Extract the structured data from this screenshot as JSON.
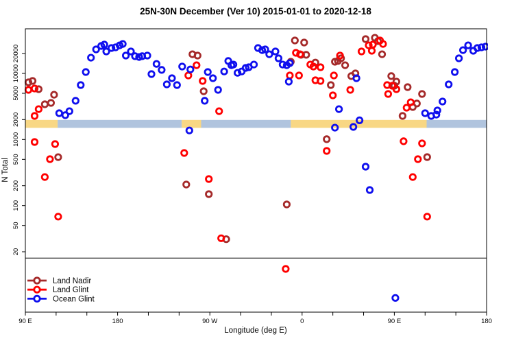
{
  "title": "25N-30N December (Ver 10)   2015-01-01 to 2020-12-18",
  "chart_data": {
    "type": "scatter",
    "title": "25N-30N December (Ver 10)   2015-01-01 to 2020-12-18",
    "xlabel": "Longitude (deg E)",
    "ylabel": "N Total",
    "x_axis": {
      "range_deg_e": [
        90,
        540
      ],
      "major_tick_lons": [
        90,
        180,
        270,
        360,
        450,
        540
      ],
      "major_tick_labels": [
        "90 E",
        "180",
        "90 W",
        "0",
        "90 E",
        "180"
      ],
      "minor_tick_step_deg": 30
    },
    "y_axis": {
      "scale": "log10",
      "tick_values": [
        20,
        50,
        100,
        200,
        500,
        1000,
        2000,
        5000,
        10000,
        20000
      ],
      "range": [
        2.4,
        47000
      ]
    },
    "reference_line": {
      "value": 16,
      "color": "#4D4D4D"
    },
    "surface_band": {
      "description": "land/ocean surface strip drawn across the plot near N=2000",
      "value_top": 1980,
      "value_bottom": 1500,
      "land_color": "#F8D784",
      "ocean_color": "#B0C4DE",
      "segments": [
        {
          "surface": "land",
          "from_deg": 90,
          "to_deg": 121.5
        },
        {
          "surface": "ocean",
          "from_deg": 121.5,
          "to_deg": 242.5
        },
        {
          "surface": "land",
          "from_deg": 242.5,
          "to_deg": 261.5
        },
        {
          "surface": "ocean",
          "from_deg": 261.5,
          "to_deg": 349
        },
        {
          "surface": "land",
          "from_deg": 349,
          "to_deg": 481.5
        },
        {
          "surface": "ocean",
          "from_deg": 481.5,
          "to_deg": 540
        }
      ]
    },
    "legend": {
      "position": "bottom-left",
      "entries": [
        {
          "label": "Land Nadir",
          "color": "#A52A2A"
        },
        {
          "label": "Land Glint",
          "color": "#FF0000"
        },
        {
          "label": "Ocean Glint",
          "color": "#0F0FEE"
        }
      ]
    },
    "series": [
      {
        "name": "Land Nadir",
        "color": "#A52A2A",
        "points": [
          [
            93,
            7330
          ],
          [
            97,
            7690
          ],
          [
            103,
            5770
          ],
          [
            109,
            3410
          ],
          [
            115,
            3580
          ],
          [
            118,
            4760
          ],
          [
            122,
            540
          ],
          [
            253,
            19500
          ],
          [
            258,
            18600
          ],
          [
            264,
            5370
          ],
          [
            247,
            208
          ],
          [
            269,
            149
          ],
          [
            286,
            31
          ],
          [
            345,
            104
          ],
          [
            349,
            15000
          ],
          [
            353,
            31500
          ],
          [
            359,
            19100
          ],
          [
            362,
            29300
          ],
          [
            364,
            19100
          ],
          [
            373,
            14600
          ],
          [
            384,
            1010
          ],
          [
            388,
            6660
          ],
          [
            392,
            15000
          ],
          [
            395,
            15400
          ],
          [
            398,
            16900
          ],
          [
            402,
            13300
          ],
          [
            408,
            9100
          ],
          [
            412,
            10000
          ],
          [
            422,
            33000
          ],
          [
            431,
            34600
          ],
          [
            434,
            30800
          ],
          [
            438,
            19500
          ],
          [
            447,
            9100
          ],
          [
            450,
            6500
          ],
          [
            452,
            7500
          ],
          [
            458,
            2270
          ],
          [
            463,
            6200
          ],
          [
            468,
            3100
          ],
          [
            472,
            3500
          ],
          [
            477,
            4880
          ],
          [
            482,
            541
          ]
        ]
      },
      {
        "name": "Land Glint",
        "color": "#FF0000",
        "points": [
          [
            93,
            5630
          ],
          [
            99,
            5910
          ],
          [
            103,
            2880
          ],
          [
            99,
            2270
          ],
          [
            99,
            915
          ],
          [
            114,
            504
          ],
          [
            109,
            270
          ],
          [
            119,
            853
          ],
          [
            122,
            68
          ],
          [
            245,
            625
          ],
          [
            249,
            9310
          ],
          [
            257,
            13300
          ],
          [
            263,
            7690
          ],
          [
            269,
            252
          ],
          [
            279,
            2680
          ],
          [
            281,
            32
          ],
          [
            344,
            11
          ],
          [
            348,
            9310
          ],
          [
            354,
            20500
          ],
          [
            357,
            9310
          ],
          [
            358,
            19500
          ],
          [
            368,
            13600
          ],
          [
            371,
            12700
          ],
          [
            373,
            7870
          ],
          [
            378,
            12400
          ],
          [
            378,
            7690
          ],
          [
            384,
            671
          ],
          [
            390,
            4650
          ],
          [
            391,
            9310
          ],
          [
            397,
            18600
          ],
          [
            407,
            5630
          ],
          [
            418,
            21500
          ],
          [
            425,
            26600
          ],
          [
            428,
            22000
          ],
          [
            429,
            27300
          ],
          [
            436,
            31500
          ],
          [
            439,
            27900
          ],
          [
            443,
            6660
          ],
          [
            444,
            4880
          ],
          [
            448,
            6500
          ],
          [
            452,
            5770
          ],
          [
            459,
            940
          ],
          [
            462,
            3030
          ],
          [
            466,
            3660
          ],
          [
            468,
            270
          ],
          [
            473,
            504
          ],
          [
            477,
            873
          ],
          [
            482,
            68
          ]
        ]
      },
      {
        "name": "Ocean Glint",
        "color": "#0F0FEE",
        "points": [
          [
            123,
            2500
          ],
          [
            129,
            2330
          ],
          [
            133,
            2680
          ],
          [
            139,
            3850
          ],
          [
            144,
            6660
          ],
          [
            149,
            10500
          ],
          [
            154,
            17300
          ],
          [
            159,
            23100
          ],
          [
            164,
            26000
          ],
          [
            167,
            27300
          ],
          [
            169,
            21500
          ],
          [
            174,
            24200
          ],
          [
            178,
            24800
          ],
          [
            182,
            26600
          ],
          [
            185,
            27900
          ],
          [
            188,
            18600
          ],
          [
            193,
            21500
          ],
          [
            197,
            18200
          ],
          [
            201,
            17700
          ],
          [
            204,
            18200
          ],
          [
            209,
            18600
          ],
          [
            213,
            9770
          ],
          [
            218,
            13900
          ],
          [
            223,
            11300
          ],
          [
            228,
            6820
          ],
          [
            233,
            8460
          ],
          [
            238,
            6660
          ],
          [
            243,
            12700
          ],
          [
            250,
            1370
          ],
          [
            251,
            11500
          ],
          [
            265,
            3850
          ],
          [
            268,
            10500
          ],
          [
            273,
            8460
          ],
          [
            278,
            5630
          ],
          [
            284,
            10700
          ],
          [
            288,
            15400
          ],
          [
            291,
            13300
          ],
          [
            293,
            13600
          ],
          [
            297,
            10200
          ],
          [
            301,
            10700
          ],
          [
            305,
            12100
          ],
          [
            308,
            12400
          ],
          [
            313,
            13600
          ],
          [
            317,
            24200
          ],
          [
            321,
            22500
          ],
          [
            324,
            23100
          ],
          [
            328,
            19500
          ],
          [
            334,
            21500
          ],
          [
            337,
            16900
          ],
          [
            341,
            13600
          ],
          [
            345,
            13300
          ],
          [
            347,
            7500
          ],
          [
            348,
            14300
          ],
          [
            392,
            1510
          ],
          [
            396,
            2880
          ],
          [
            410,
            1550
          ],
          [
            413,
            8460
          ],
          [
            416,
            1950
          ],
          [
            422,
            387
          ],
          [
            426,
            172
          ],
          [
            451,
            4
          ],
          [
            480,
            2500
          ],
          [
            486,
            2270
          ],
          [
            491,
            2380
          ],
          [
            492,
            2750
          ],
          [
            497,
            3750
          ],
          [
            503,
            6820
          ],
          [
            509,
            10500
          ],
          [
            513,
            16900
          ],
          [
            517,
            22500
          ],
          [
            522,
            26600
          ],
          [
            527,
            22000
          ],
          [
            531,
            24200
          ],
          [
            535,
            24800
          ],
          [
            539,
            25400
          ]
        ]
      }
    ]
  }
}
